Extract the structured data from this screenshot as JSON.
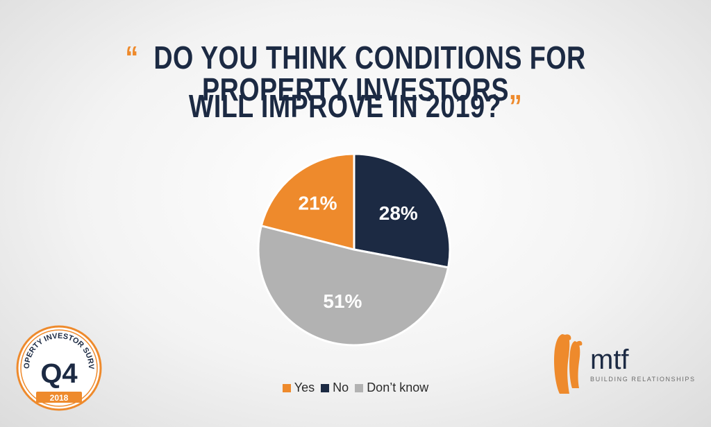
{
  "title": {
    "open_quote": "“",
    "line1": "DO YOU THINK CONDITIONS FOR PROPERTY INVESTORS",
    "line2": "WILL IMPROVE IN 2019?",
    "close_quote": "”"
  },
  "chart_data": {
    "type": "pie",
    "categories": [
      "Yes",
      "No",
      "Don’t know"
    ],
    "values": [
      21,
      28,
      51
    ],
    "labels": [
      "21%",
      "28%",
      "51%"
    ],
    "colors": [
      "#ee8a2c",
      "#1c2a43",
      "#b2b2b2"
    ],
    "label_colors": [
      "#ffffff",
      "#ffffff",
      "#ffffff"
    ],
    "start_angle_deg": 0,
    "direction": "clockwise",
    "legend_position": "bottom-center"
  },
  "badge": {
    "top_text": "PROPERTY INVESTOR SURVEY",
    "center_text": "Q4",
    "year": "2018",
    "color": "#ee8a2c",
    "center_color": "#1c2a43"
  },
  "logo": {
    "name": "mtf",
    "tagline": "BUILDING RELATIONSHIPS",
    "icon": "penguins-icon",
    "accent_color": "#ee8a2c",
    "text_color": "#1c2a43"
  }
}
